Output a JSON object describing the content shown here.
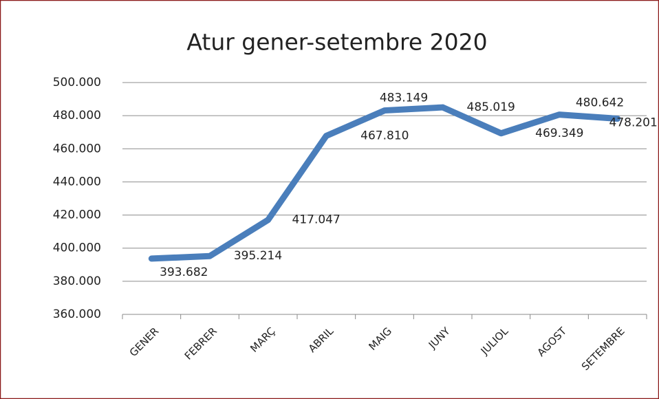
{
  "chart_data": {
    "type": "line",
    "title": "Atur gener-setembre 2020",
    "categories": [
      "GENER",
      "FEBRER",
      "MARÇ",
      "ABRIL",
      "MAIG",
      "JUNY",
      "JULIOL",
      "AGOST",
      "SETEMBRE"
    ],
    "series": [
      {
        "name": "Atur",
        "color": "#4a7ebb",
        "values": [
          393682,
          395214,
          417047,
          467810,
          483149,
          485019,
          469349,
          480642,
          478201
        ],
        "value_labels": [
          "393.682",
          "395.214",
          "417.047",
          "467.810",
          "483.149",
          "485.019",
          "469.349",
          "480.642",
          "478.201"
        ]
      }
    ],
    "ylim": [
      360000,
      500000
    ],
    "yticks": [
      {
        "value": 360000,
        "label": "360.000"
      },
      {
        "value": 380000,
        "label": "380.000"
      },
      {
        "value": 400000,
        "label": "400.000"
      },
      {
        "value": 420000,
        "label": "420.000"
      },
      {
        "value": 440000,
        "label": "440.000"
      },
      {
        "value": 460000,
        "label": "460.000"
      },
      {
        "value": 480000,
        "label": "480.000"
      },
      {
        "value": 500000,
        "label": "500.000"
      }
    ],
    "grid": true
  }
}
